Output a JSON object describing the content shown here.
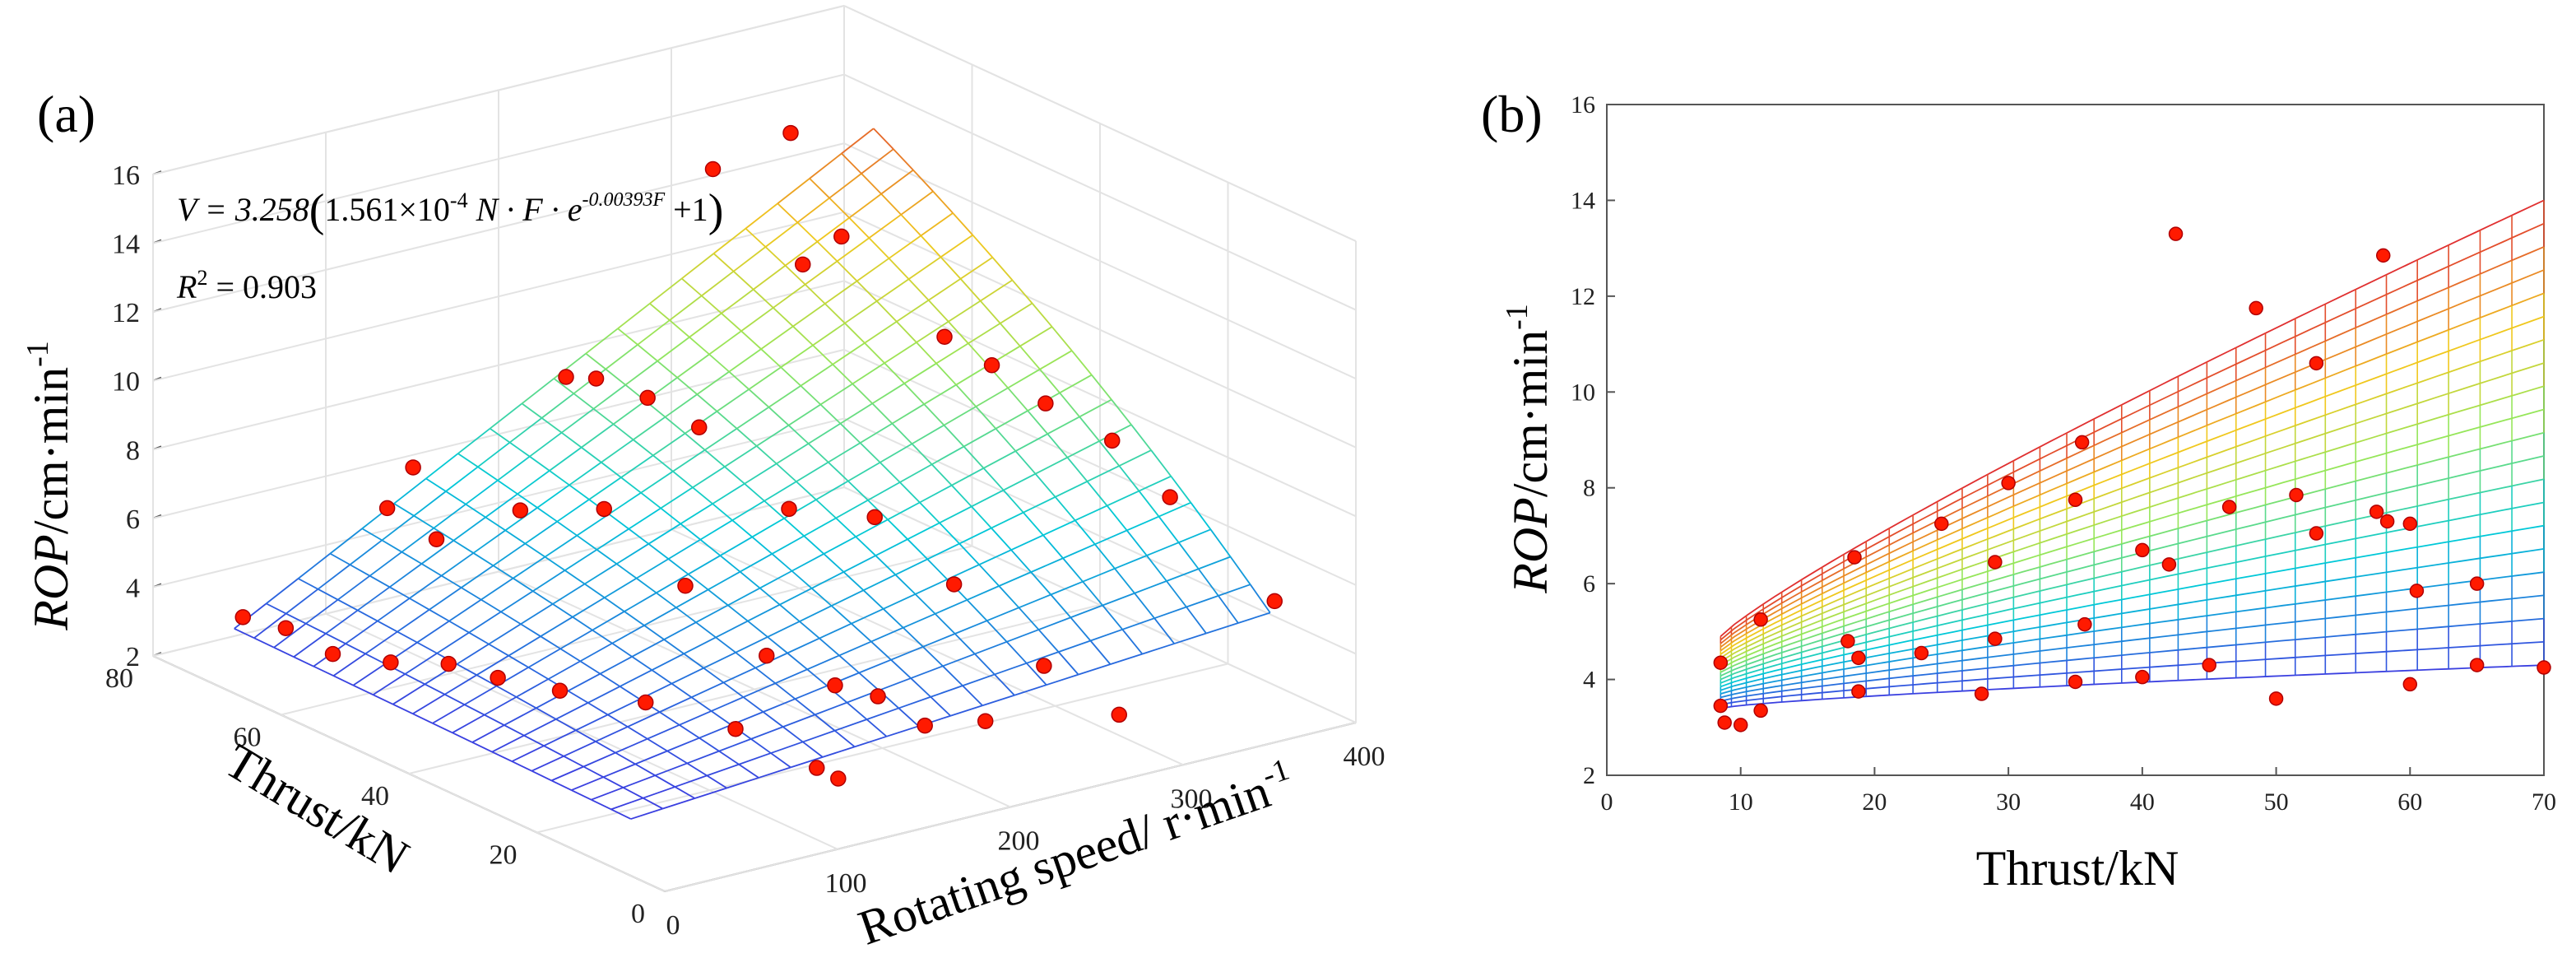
{
  "panel_a_label": "(a)",
  "panel_b_label": "(b)",
  "colors": {
    "point": "#ff1a00",
    "point_edge": "#b00000",
    "axis": "#555555",
    "grid": "#e3e3e3",
    "surface_colormap": [
      "#3a3fe0",
      "#00c8d8",
      "#c8e84a",
      "#f0c020",
      "#e03030"
    ]
  },
  "chart_data": [
    {
      "type": "scatter",
      "subtype": "3d-surface-with-scatter",
      "title": "",
      "equation": {
        "prefix": "V = 3.258",
        "body": "1.561×10",
        "body_exp": "-4",
        "body_mid": " N · F · e",
        "exp_term": "-0.00393F",
        "suffix": " +1"
      },
      "r2_label": "R",
      "r2_sup": "2",
      "r2_value": " = 0.903",
      "xlabel": "Rotating speed/ r·min",
      "xlabel_sup": "-1",
      "ylabel": "Thrust/kN",
      "zlabel_italic": "ROP",
      "zlabel_rest": "/cm·min",
      "zlabel_sup": "-1",
      "xlim": [
        0,
        400
      ],
      "ylim": [
        0,
        80
      ],
      "zlim": [
        2,
        16
      ],
      "xticks": [
        0,
        100,
        200,
        300,
        400
      ],
      "yticks": [
        0,
        20,
        40,
        60,
        80
      ],
      "zticks": [
        2,
        4,
        6,
        8,
        10,
        12,
        14,
        16
      ],
      "surface": {
        "model": "V = 3.258*(1.561e-4*N*F*exp(-0.00393*F)+1)",
        "x_range": [
          10,
          380
        ],
        "y_range": [
          8,
          70
        ],
        "grid_lines": 20
      },
      "points": [
        {
          "x": 15,
          "y": 70,
          "z": 3.8
        },
        {
          "x": 25,
          "y": 66,
          "z": 3.7
        },
        {
          "x": 30,
          "y": 60,
          "z": 3.4
        },
        {
          "x": 45,
          "y": 55,
          "z": 3.4
        },
        {
          "x": 60,
          "y": 50,
          "z": 3.6
        },
        {
          "x": 70,
          "y": 45,
          "z": 3.5
        },
        {
          "x": 80,
          "y": 38,
          "z": 3.6
        },
        {
          "x": 100,
          "y": 30,
          "z": 3.7
        },
        {
          "x": 115,
          "y": 20,
          "z": 3.6
        },
        {
          "x": 125,
          "y": 10,
          "z": 3.2
        },
        {
          "x": 130,
          "y": 8,
          "z": 3.0
        },
        {
          "x": 80,
          "y": 65,
          "z": 6.6
        },
        {
          "x": 90,
          "y": 60,
          "z": 6.0
        },
        {
          "x": 95,
          "y": 65,
          "z": 7.6
        },
        {
          "x": 120,
          "y": 55,
          "z": 6.9
        },
        {
          "x": 150,
          "y": 50,
          "z": 7.0
        },
        {
          "x": 160,
          "y": 40,
          "z": 5.5
        },
        {
          "x": 170,
          "y": 30,
          "z": 4.2
        },
        {
          "x": 180,
          "y": 22,
          "z": 3.9
        },
        {
          "x": 190,
          "y": 18,
          "z": 3.8
        },
        {
          "x": 195,
          "y": 12,
          "z": 3.4
        },
        {
          "x": 165,
          "y": 60,
          "z": 9.8
        },
        {
          "x": 175,
          "y": 58,
          "z": 9.8
        },
        {
          "x": 190,
          "y": 54,
          "z": 9.4
        },
        {
          "x": 205,
          "y": 50,
          "z": 8.7
        },
        {
          "x": 220,
          "y": 40,
          "z": 7.0
        },
        {
          "x": 240,
          "y": 32,
          "z": 7.2
        },
        {
          "x": 260,
          "y": 25,
          "z": 5.6
        },
        {
          "x": 230,
          "y": 12,
          "z": 3.1
        },
        {
          "x": 275,
          "y": 15,
          "z": 3.9
        },
        {
          "x": 300,
          "y": 10,
          "z": 2.6
        },
        {
          "x": 250,
          "y": 60,
          "z": 14.8
        },
        {
          "x": 265,
          "y": 50,
          "z": 12.7
        },
        {
          "x": 280,
          "y": 48,
          "z": 13.5
        },
        {
          "x": 295,
          "y": 60,
          "z": 15.3
        },
        {
          "x": 310,
          "y": 40,
          "z": 10.9
        },
        {
          "x": 330,
          "y": 38,
          "z": 10.0
        },
        {
          "x": 350,
          "y": 35,
          "z": 8.9
        },
        {
          "x": 370,
          "y": 30,
          "z": 8.0
        },
        {
          "x": 385,
          "y": 25,
          "z": 6.6
        },
        {
          "x": 390,
          "y": 10,
          "z": 4.8
        }
      ]
    },
    {
      "type": "scatter",
      "subtype": "surface-side-projection",
      "title": "",
      "xlabel": "Thrust/kN",
      "ylabel_italic": "ROP",
      "ylabel_rest": "/cm·min",
      "ylabel_sup": "-1",
      "xlim": [
        0,
        70
      ],
      "ylim": [
        2,
        16
      ],
      "xticks": [
        0,
        10,
        20,
        30,
        40,
        50,
        60,
        70
      ],
      "yticks": [
        2,
        4,
        6,
        8,
        10,
        12,
        14,
        16
      ],
      "surface": {
        "x_start": 8.5,
        "x_end": 70,
        "bottom_start": 3.4,
        "bottom_end": 4.3,
        "top_start": 4.9,
        "top_end": 14.0,
        "levels": 20,
        "vertical_lines": 32
      },
      "points": [
        {
          "x": 8.5,
          "y": 4.35
        },
        {
          "x": 8.5,
          "y": 3.45
        },
        {
          "x": 8.8,
          "y": 3.1
        },
        {
          "x": 10,
          "y": 3.05
        },
        {
          "x": 11.5,
          "y": 5.25
        },
        {
          "x": 11.5,
          "y": 3.35
        },
        {
          "x": 18,
          "y": 4.8
        },
        {
          "x": 18.5,
          "y": 6.55
        },
        {
          "x": 18.8,
          "y": 4.45
        },
        {
          "x": 18.8,
          "y": 3.75
        },
        {
          "x": 23.5,
          "y": 4.55
        },
        {
          "x": 25,
          "y": 7.25
        },
        {
          "x": 28,
          "y": 3.7
        },
        {
          "x": 29,
          "y": 6.45
        },
        {
          "x": 29,
          "y": 4.85
        },
        {
          "x": 30,
          "y": 8.1
        },
        {
          "x": 35,
          "y": 7.75
        },
        {
          "x": 35,
          "y": 3.95
        },
        {
          "x": 35.5,
          "y": 8.95
        },
        {
          "x": 35.7,
          "y": 5.15
        },
        {
          "x": 40,
          "y": 6.7
        },
        {
          "x": 40,
          "y": 4.05
        },
        {
          "x": 42,
          "y": 6.4
        },
        {
          "x": 42.5,
          "y": 13.3
        },
        {
          "x": 45,
          "y": 4.3
        },
        {
          "x": 46.5,
          "y": 7.6
        },
        {
          "x": 48.5,
          "y": 11.75
        },
        {
          "x": 50,
          "y": 3.6
        },
        {
          "x": 51.5,
          "y": 7.85
        },
        {
          "x": 53,
          "y": 10.6
        },
        {
          "x": 53,
          "y": 7.05
        },
        {
          "x": 57.5,
          "y": 7.5
        },
        {
          "x": 58,
          "y": 12.85
        },
        {
          "x": 58.3,
          "y": 7.3
        },
        {
          "x": 60,
          "y": 7.25
        },
        {
          "x": 60,
          "y": 3.9
        },
        {
          "x": 60.5,
          "y": 5.85
        },
        {
          "x": 65,
          "y": 6.0
        },
        {
          "x": 65,
          "y": 4.3
        },
        {
          "x": 70,
          "y": 4.25
        }
      ]
    }
  ]
}
